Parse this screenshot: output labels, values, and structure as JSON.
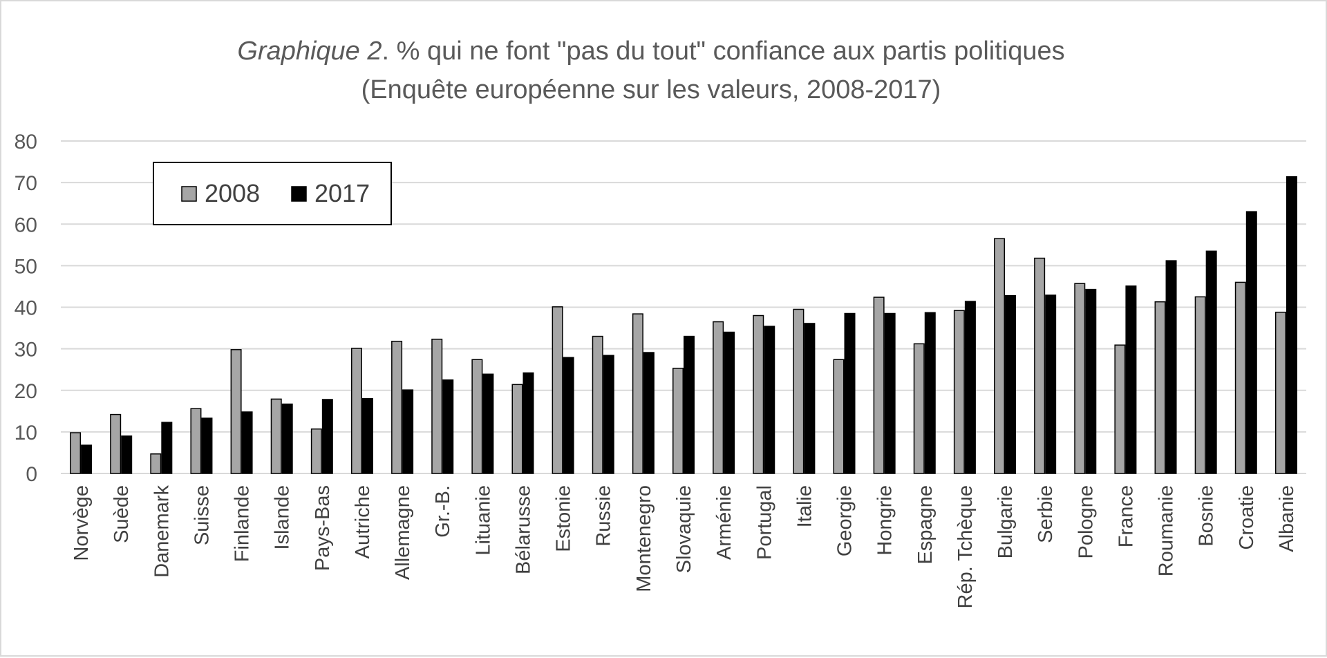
{
  "chart_data": {
    "type": "bar",
    "title_prefix_italic": "Graphique 2",
    "title_rest": ". % qui ne font \"pas du tout\" confiance aux partis politiques",
    "subtitle": "(Enquête européenne sur les valeurs, 2008-2017)",
    "xlabel": "",
    "ylabel": "",
    "ylim": [
      0,
      80
    ],
    "yticks": [
      "0",
      "10",
      "20",
      "30",
      "40",
      "50",
      "60",
      "70",
      "80"
    ],
    "grid": "horizontal",
    "legend_position": "top-left",
    "categories": [
      "Norvège",
      "Suède",
      "Danemark",
      "Suisse",
      "Finlande",
      "Islande",
      "Pays-Bas",
      "Autriche",
      "Allemagne",
      "Gr.-B.",
      "Lituanie",
      "Bélarusse",
      "Estonie",
      "Russie",
      "Montenegro",
      "Slovaquie",
      "Arménie",
      "Portugal",
      "Italie",
      "Georgie",
      "Hongrie",
      "Espagne",
      "Rép. Tchèque",
      "Bulgarie",
      "Serbie",
      "Pologne",
      "France",
      "Roumanie",
      "Bosnie",
      "Croatie",
      "Albanie"
    ],
    "series": [
      {
        "name": "2008",
        "color": "#a6a6a6",
        "values": [
          9.8,
          14.2,
          4.7,
          15.6,
          29.8,
          17.9,
          10.7,
          30.1,
          31.8,
          32.3,
          27.4,
          21.4,
          40.1,
          33.0,
          38.4,
          25.3,
          36.5,
          38.0,
          39.5,
          27.4,
          42.4,
          31.2,
          39.2,
          56.5,
          51.8,
          45.7,
          30.9,
          41.3,
          42.5,
          46.0,
          38.8
        ]
      },
      {
        "name": "2017",
        "color": "#000000",
        "values": [
          6.8,
          9.0,
          12.3,
          13.3,
          14.8,
          16.7,
          17.8,
          18.0,
          20.1,
          22.5,
          23.9,
          24.2,
          27.9,
          28.4,
          29.1,
          33.0,
          34.0,
          35.4,
          36.1,
          38.5,
          38.5,
          38.7,
          41.4,
          42.8,
          42.9,
          44.3,
          45.1,
          51.2,
          53.5,
          63.0,
          71.4
        ]
      }
    ]
  },
  "colors": {
    "gridline": "#d9d9d9",
    "bar_outline": "#000000",
    "text": "#595959"
  }
}
